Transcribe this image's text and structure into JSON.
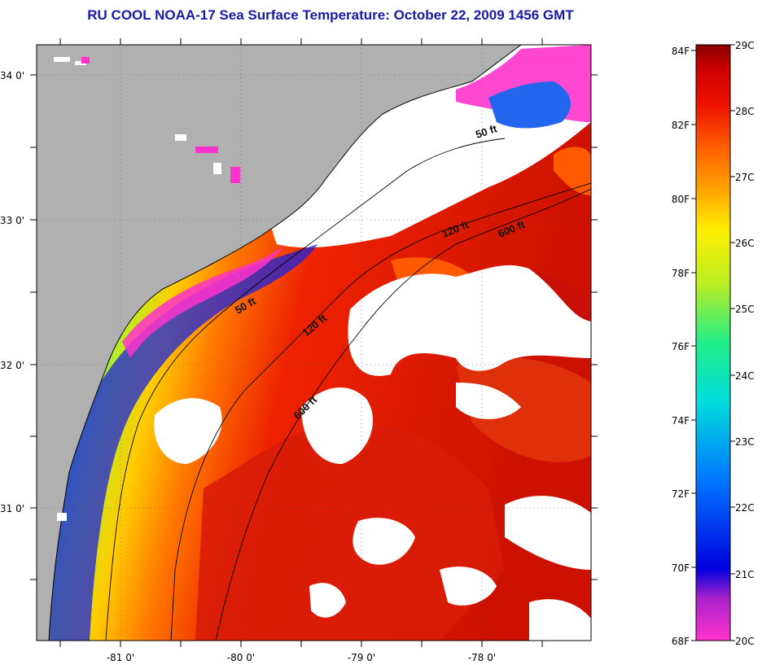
{
  "title": "RU COOL  NOAA-17  Sea Surface Temperature:  October 22, 2009 1456 GMT",
  "map": {
    "lat_labels": [
      "34 0'",
      "33 0'",
      "32 0'",
      "31 0'"
    ],
    "lon_labels": [
      "-81 0'",
      "-80 0'",
      "-79 0'",
      "-78 0'"
    ],
    "contour_labels": [
      "50 ft",
      "50 ft",
      "120 ft",
      "120 ft",
      "600 ft",
      "600 ft"
    ],
    "colors": {
      "land": "#b0b0b0",
      "cloud": "#ffffff"
    }
  },
  "colorbar": {
    "fahrenheit_labels": [
      "84F",
      "82F",
      "80F",
      "78F",
      "76F",
      "74F",
      "72F",
      "70F",
      "68F"
    ],
    "celsius_labels": [
      "29C",
      "28C",
      "27C",
      "26C",
      "25C",
      "24C",
      "23C",
      "22C",
      "21C",
      "20C"
    ],
    "colors": [
      "#ff33cc",
      "#8822cc",
      "#0000dd",
      "#0077ff",
      "#00dddd",
      "#22ee88",
      "#bbee22",
      "#ffee00",
      "#ffaa00",
      "#ff6600",
      "#ee1100",
      "#cc0000",
      "#880000"
    ]
  }
}
